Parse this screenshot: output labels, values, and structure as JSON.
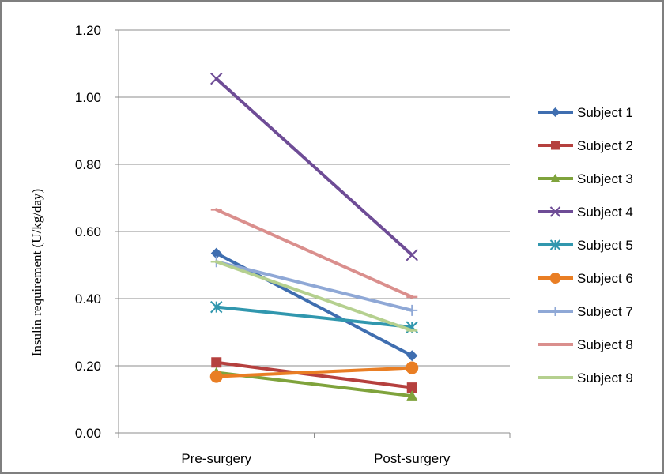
{
  "chart_data": {
    "type": "line",
    "categories": [
      "Pre-surgery",
      "Post-surgery"
    ],
    "ylabel": "Insulin requirement (U/kg/day)",
    "xlabel": "",
    "ylim": [
      0,
      1.2
    ],
    "yticks": [
      "0.00",
      "0.20",
      "0.40",
      "0.60",
      "0.80",
      "1.00",
      "1.20"
    ],
    "grid": true,
    "legend_position": "right",
    "series": [
      {
        "name": "Subject 1",
        "values": [
          0.535,
          0.23
        ],
        "color": "#3F6EB0",
        "marker": "diamond"
      },
      {
        "name": "Subject 2",
        "values": [
          0.21,
          0.135
        ],
        "color": "#B5403E",
        "marker": "square"
      },
      {
        "name": "Subject 3",
        "values": [
          0.18,
          0.11
        ],
        "color": "#7FA33C",
        "marker": "triangle"
      },
      {
        "name": "Subject 4",
        "values": [
          1.055,
          0.53
        ],
        "color": "#6E4C96",
        "marker": "x"
      },
      {
        "name": "Subject 5",
        "values": [
          0.375,
          0.315
        ],
        "color": "#3197AE",
        "marker": "star"
      },
      {
        "name": "Subject 6",
        "values": [
          0.168,
          0.194
        ],
        "color": "#E97E24",
        "marker": "circle"
      },
      {
        "name": "Subject 7",
        "values": [
          0.51,
          0.365
        ],
        "color": "#8FA8D6",
        "marker": "plus"
      },
      {
        "name": "Subject 8",
        "values": [
          0.665,
          0.405
        ],
        "color": "#DA8F8D",
        "marker": "dash"
      },
      {
        "name": "Subject 9",
        "values": [
          0.51,
          0.305
        ],
        "color": "#B5D08F",
        "marker": "dash"
      }
    ]
  }
}
